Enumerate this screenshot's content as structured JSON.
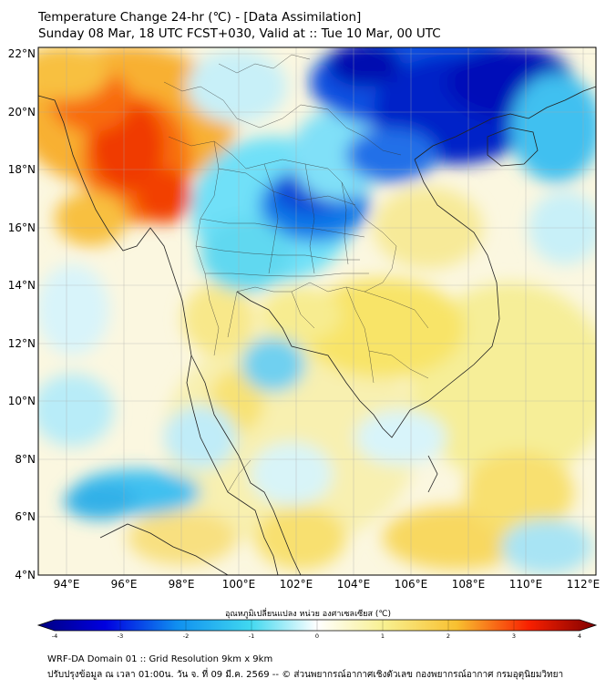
{
  "header": {
    "title": "Temperature Change 24-hr (℃) - [Data Assimilation]",
    "subtitle": "Sunday 08 Mar, 18 UTC FCST+030, Valid at :: Tue 10 Mar, 00 UTC"
  },
  "map": {
    "lon_range": [
      93,
      112.5
    ],
    "lat_range": [
      4,
      22.2
    ],
    "lon_ticks": [
      "94°E",
      "96°E",
      "98°E",
      "100°E",
      "102°E",
      "104°E",
      "106°E",
      "108°E",
      "110°E",
      "112°E"
    ],
    "lat_ticks": [
      "4°N",
      "6°N",
      "8°N",
      "10°N",
      "12°N",
      "14°N",
      "16°N",
      "18°N",
      "20°N",
      "22°N"
    ],
    "grid": true,
    "colors": {
      "cold_strong": "#0000d8",
      "cold": "#40c8f0",
      "neutral": "#ffffff",
      "warm": "#f8e870",
      "hot": "#f83000"
    }
  },
  "colorbar": {
    "label": "อุณหภูมิเปลี่ยนแปลง หน่วย องศาเซลเซียส (℃)",
    "ticks": [
      "-4",
      "-3",
      "-2",
      "-1",
      "0",
      "1",
      "2",
      "3",
      "4"
    ],
    "range": [
      -4,
      4
    ]
  },
  "footer": {
    "line1": "WRF-DA Domain 01 :: Grid Resolution 9km x 9km",
    "line2": "ปรับปรุงข้อมูล ณ เวลา 01:00น. วัน จ. ที่ 09 มี.ค. 2569 -- © ส่วนพยากรณ์อากาศเชิงตัวเลข กองพยากรณ์อากาศ กรมอุตุนิยมวิทยา"
  }
}
